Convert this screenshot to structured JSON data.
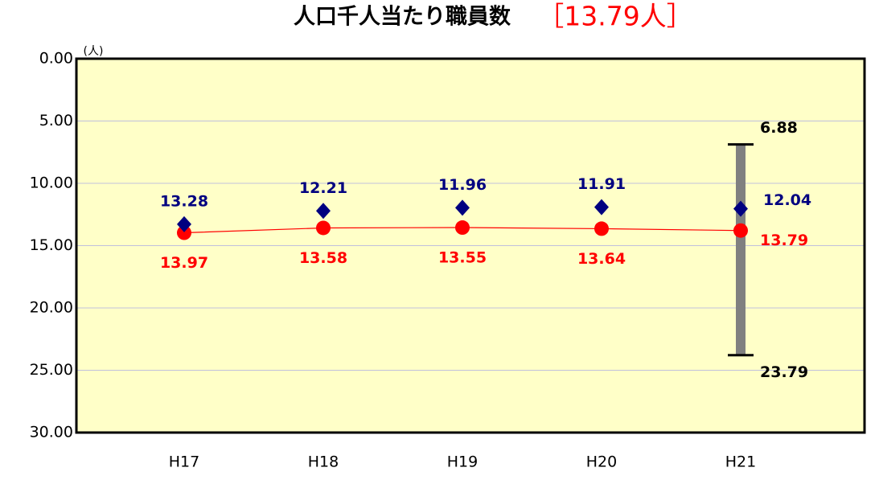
{
  "chart_data": {
    "type": "line",
    "title": "人口千人当たり職員数",
    "title_value": "［13.79人］",
    "y_unit": "(人)",
    "categories": [
      "H17",
      "H18",
      "H19",
      "H20",
      "H21"
    ],
    "series": [
      {
        "color": "#ff0000",
        "marker": "circle",
        "values": [
          13.97,
          13.58,
          13.55,
          13.64,
          13.79
        ]
      },
      {
        "color": "#000080",
        "marker": "diamond",
        "values": [
          13.28,
          12.21,
          11.96,
          11.91,
          12.04
        ]
      }
    ],
    "range_bar": {
      "category": "H21",
      "min": 6.88,
      "max": 23.79,
      "color": "#808080"
    },
    "ylim": [
      0,
      30
    ],
    "y_inverted": true,
    "yticks": [
      {
        "value": 0,
        "label": "0.00"
      },
      {
        "value": 5,
        "label": "5.00"
      },
      {
        "value": 10,
        "label": "10.00"
      },
      {
        "value": 15,
        "label": "15.00"
      },
      {
        "value": 20,
        "label": "20.00"
      },
      {
        "value": 25,
        "label": "25.00"
      },
      {
        "value": 30,
        "label": "30.00"
      }
    ],
    "grid": true,
    "plot_background": "#ffffc8"
  }
}
